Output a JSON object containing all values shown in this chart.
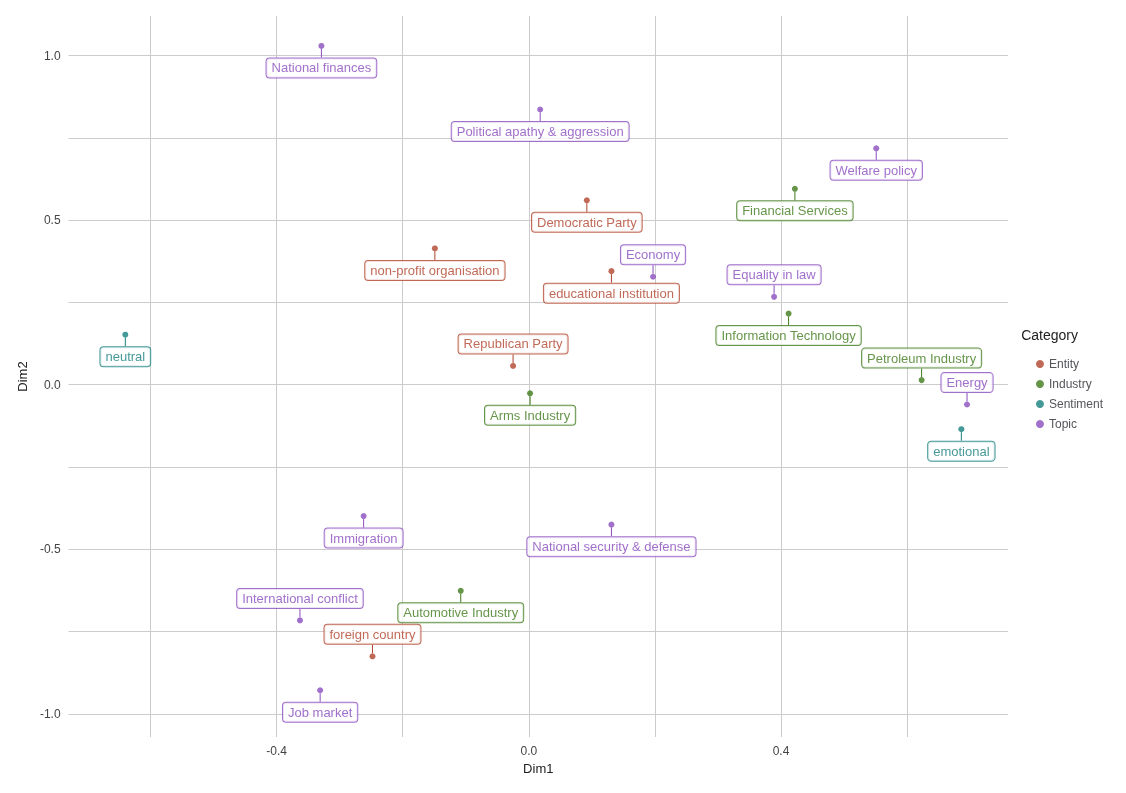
{
  "chart_data": {
    "type": "scatter",
    "xlabel": "Dim1",
    "ylabel": "Dim2",
    "legend_title": "Category",
    "legend": "right",
    "grid": true,
    "marker": "circle",
    "xlim": [
      -0.73,
      0.76
    ],
    "ylim": [
      -1.07,
      1.12
    ],
    "xticks": [
      {
        "value": -0.6,
        "label": null
      },
      -0.4,
      {
        "value": -0.2,
        "label": null
      },
      {
        "value": 0,
        "label": "0.0"
      },
      {
        "value": 0.2,
        "label": null
      },
      0.4,
      {
        "value": 0.6,
        "label": null
      }
    ],
    "yticks": [
      {
        "value": -1,
        "label": "-1.0"
      },
      {
        "value": -0.75,
        "label": null
      },
      -0.5,
      {
        "value": -0.25,
        "label": null
      },
      {
        "value": 0,
        "label": "0.0"
      },
      {
        "value": 0.25,
        "label": null
      },
      0.5,
      {
        "value": 0.75,
        "label": null
      },
      {
        "value": 1,
        "label": "1.0"
      }
    ],
    "series": [
      {
        "name": "Entity",
        "color": "#b0432c",
        "x": [
          0.092,
          -0.149,
          0.131,
          -0.025,
          -0.248
        ],
        "values": [
          0.56,
          0.414,
          0.345,
          0.057,
          -0.825
        ]
      },
      {
        "name": "Industry",
        "color": "#3f7a1c",
        "x": [
          0.422,
          0.412,
          0.002,
          0.623,
          -0.108
        ],
        "values": [
          0.595,
          0.216,
          -0.026,
          0.014,
          -0.626
        ]
      },
      {
        "name": "Sentiment",
        "color": "#16807e",
        "x": [
          -0.64,
          0.686
        ],
        "values": [
          0.152,
          -0.135
        ]
      },
      {
        "name": "Topic",
        "color": "#8a4cbe",
        "x": [
          -0.329,
          0.018,
          0.551,
          0.197,
          0.389,
          0.695,
          -0.262,
          0.131,
          -0.363,
          -0.331
        ],
        "values": [
          1.029,
          0.836,
          0.718,
          0.328,
          0.267,
          -0.06,
          -0.399,
          -0.425,
          -0.716,
          -0.928
        ]
      }
    ],
    "annotations": [
      {
        "text": "Democratic Party",
        "x": 0.092,
        "y": 0.56
      },
      {
        "text": "non-profit organisation",
        "x": -0.149,
        "y": 0.414
      },
      {
        "text": "educational institution",
        "x": 0.131,
        "y": 0.345
      },
      {
        "text": "Republican Party",
        "x": -0.025,
        "y": 0.057
      },
      {
        "text": "foreign country",
        "x": -0.248,
        "y": -0.825
      },
      {
        "text": "Financial Services",
        "x": 0.422,
        "y": 0.595
      },
      {
        "text": "Information Technology",
        "x": 0.412,
        "y": 0.216
      },
      {
        "text": "Arms Industry",
        "x": 0.002,
        "y": -0.026
      },
      {
        "text": "Petroleum Industry",
        "x": 0.623,
        "y": 0.014
      },
      {
        "text": "Automotive Industry",
        "x": -0.108,
        "y": -0.626
      },
      {
        "text": "neutral",
        "x": -0.64,
        "y": 0.152
      },
      {
        "text": "emotional",
        "x": 0.686,
        "y": -0.135
      },
      {
        "text": "National finances",
        "x": -0.329,
        "y": 1.029
      },
      {
        "text": "Political apathy & aggression",
        "x": 0.018,
        "y": 0.836
      },
      {
        "text": "Welfare policy",
        "x": 0.551,
        "y": 0.718
      },
      {
        "text": "Economy",
        "x": 0.197,
        "y": 0.328
      },
      {
        "text": "Equality in law",
        "x": 0.389,
        "y": 0.267
      },
      {
        "text": "Energy",
        "x": 0.695,
        "y": -0.06
      },
      {
        "text": "Immigration",
        "x": -0.262,
        "y": -0.399
      },
      {
        "text": "National security & defense",
        "x": 0.131,
        "y": -0.425
      },
      {
        "text": "International conflict",
        "x": -0.363,
        "y": -0.716
      },
      {
        "text": "Job market",
        "x": -0.331,
        "y": -0.928
      }
    ]
  }
}
